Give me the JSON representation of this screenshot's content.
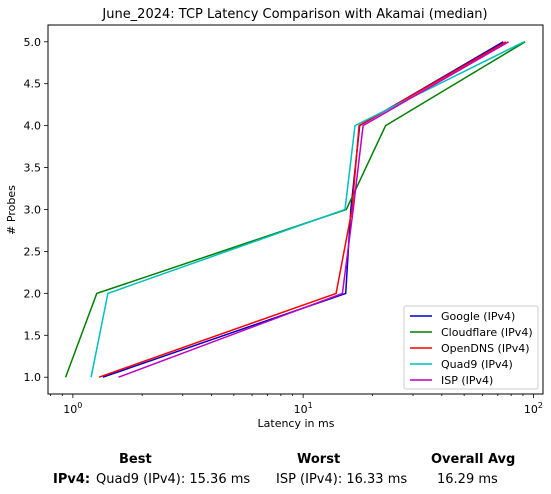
{
  "chart_data": {
    "type": "line",
    "title": "June_2024: TCP Latency Comparison with Akamai (median)",
    "xlabel": "Latency in ms",
    "ylabel": "# Probes",
    "xscale": "log",
    "xlim": [
      0.78,
      110
    ],
    "ylim": [
      0.8,
      5.2
    ],
    "xticks": [
      {
        "value": 1,
        "base": "10",
        "exp": "0"
      },
      {
        "value": 10,
        "base": "10",
        "exp": "1"
      },
      {
        "value": 100,
        "base": "10",
        "exp": "2"
      }
    ],
    "yticks": [
      "1.0",
      "1.5",
      "2.0",
      "2.5",
      "3.0",
      "3.5",
      "4.0",
      "4.5",
      "5.0"
    ],
    "legend_position": "bottom-right",
    "series": [
      {
        "name": "Google (IPv4)",
        "color": "#0000cc",
        "points": [
          [
            1.35,
            1
          ],
          [
            15.3,
            2
          ],
          [
            16.1,
            3
          ],
          [
            17.6,
            4
          ],
          [
            74,
            5
          ]
        ]
      },
      {
        "name": "Cloudflare (IPv4)",
        "color": "#008000",
        "points": [
          [
            0.93,
            1
          ],
          [
            1.27,
            2
          ],
          [
            15.4,
            3
          ],
          [
            22.8,
            4
          ],
          [
            92,
            5
          ]
        ]
      },
      {
        "name": "OpenDNS (IPv4)",
        "color": "#ff0000",
        "points": [
          [
            1.3,
            1
          ],
          [
            13.9,
            2
          ],
          [
            16.3,
            3
          ],
          [
            17.5,
            4
          ],
          [
            76,
            5
          ]
        ]
      },
      {
        "name": "Quad9 (IPv4)",
        "color": "#00bfbf",
        "points": [
          [
            1.2,
            1
          ],
          [
            1.42,
            2
          ],
          [
            15.2,
            3
          ],
          [
            16.8,
            4
          ],
          [
            91,
            5
          ]
        ]
      },
      {
        "name": "ISP (IPv4)",
        "color": "#bf00bf",
        "points": [
          [
            1.58,
            1
          ],
          [
            14.8,
            2
          ],
          [
            16.5,
            3
          ],
          [
            18.2,
            4
          ],
          [
            78,
            5
          ]
        ]
      }
    ]
  },
  "summary": {
    "best_header": "Best",
    "worst_header": "Worst",
    "avg_header": "Overall Avg",
    "row_label": "IPv4:",
    "best_value": "Quad9 (IPv4): 15.36 ms",
    "worst_value": "ISP (IPv4): 16.33 ms",
    "avg_value": "16.29 ms"
  }
}
